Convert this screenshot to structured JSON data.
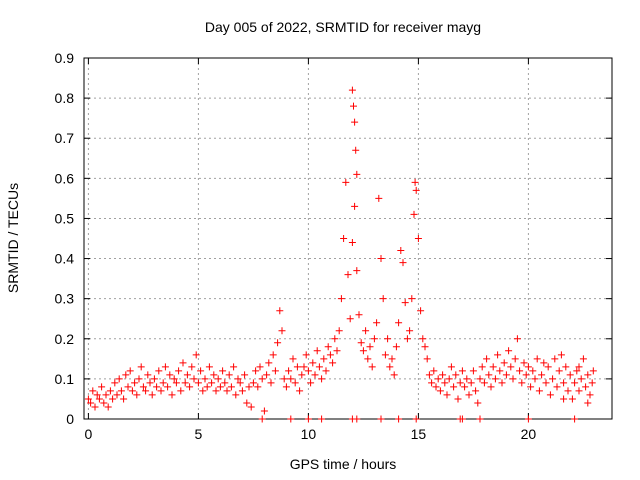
{
  "chart_data": {
    "type": "scatter",
    "title": "Day 005 of 2022, SRMTID for receiver mayg",
    "xlabel": "GPS time / hours",
    "ylabel": "SRMTID / TECUs",
    "xlim": [
      -0.2,
      23.8
    ],
    "ylim": [
      0,
      0.9
    ],
    "x_ticks": [
      0,
      5,
      10,
      15,
      20
    ],
    "y_ticks": [
      0,
      0.1,
      0.2,
      0.3,
      0.4,
      0.5,
      0.6,
      0.7,
      0.8,
      0.9
    ],
    "y_tick_labels": [
      "0",
      "0.1",
      "0.2",
      "0.3",
      "0.4",
      "0.5",
      "0.6",
      "0.7",
      "0.8",
      "0.9"
    ],
    "grid": true,
    "marker": "+",
    "color": "#ff0000",
    "series": [
      {
        "name": "SRMTID",
        "points": [
          [
            0.0,
            0.05
          ],
          [
            0.1,
            0.04
          ],
          [
            0.2,
            0.07
          ],
          [
            0.3,
            0.03
          ],
          [
            0.4,
            0.06
          ],
          [
            0.5,
            0.05
          ],
          [
            0.6,
            0.08
          ],
          [
            0.7,
            0.04
          ],
          [
            0.8,
            0.06
          ],
          [
            0.9,
            0.03
          ],
          [
            1.0,
            0.07
          ],
          [
            1.1,
            0.05
          ],
          [
            1.2,
            0.09
          ],
          [
            1.3,
            0.06
          ],
          [
            1.4,
            0.1
          ],
          [
            1.5,
            0.07
          ],
          [
            1.6,
            0.05
          ],
          [
            1.7,
            0.11
          ],
          [
            1.8,
            0.08
          ],
          [
            1.9,
            0.12
          ],
          [
            2.0,
            0.07
          ],
          [
            2.1,
            0.09
          ],
          [
            2.2,
            0.06
          ],
          [
            2.3,
            0.1
          ],
          [
            2.4,
            0.13
          ],
          [
            2.5,
            0.08
          ],
          [
            2.6,
            0.07
          ],
          [
            2.7,
            0.11
          ],
          [
            2.8,
            0.09
          ],
          [
            2.9,
            0.06
          ],
          [
            3.0,
            0.1
          ],
          [
            3.1,
            0.08
          ],
          [
            3.2,
            0.12
          ],
          [
            3.3,
            0.07
          ],
          [
            3.4,
            0.09
          ],
          [
            3.5,
            0.13
          ],
          [
            3.6,
            0.08
          ],
          [
            3.7,
            0.11
          ],
          [
            3.8,
            0.06
          ],
          [
            3.9,
            0.1
          ],
          [
            4.0,
            0.09
          ],
          [
            4.1,
            0.12
          ],
          [
            4.2,
            0.07
          ],
          [
            4.3,
            0.14
          ],
          [
            4.4,
            0.09
          ],
          [
            4.5,
            0.11
          ],
          [
            4.6,
            0.08
          ],
          [
            4.7,
            0.13
          ],
          [
            4.8,
            0.1
          ],
          [
            4.9,
            0.16
          ],
          [
            5.0,
            0.09
          ],
          [
            5.1,
            0.12
          ],
          [
            5.2,
            0.07
          ],
          [
            5.3,
            0.1
          ],
          [
            5.4,
            0.08
          ],
          [
            5.5,
            0.13
          ],
          [
            5.6,
            0.09
          ],
          [
            5.7,
            0.11
          ],
          [
            5.8,
            0.07
          ],
          [
            5.9,
            0.1
          ],
          [
            6.0,
            0.08
          ],
          [
            6.1,
            0.12
          ],
          [
            6.2,
            0.09
          ],
          [
            6.3,
            0.07
          ],
          [
            6.4,
            0.11
          ],
          [
            6.5,
            0.08
          ],
          [
            6.6,
            0.13
          ],
          [
            6.7,
            0.06
          ],
          [
            6.8,
            0.1
          ],
          [
            6.9,
            0.09
          ],
          [
            7.0,
            0.07
          ],
          [
            7.1,
            0.11
          ],
          [
            7.2,
            0.04
          ],
          [
            7.3,
            0.08
          ],
          [
            7.4,
            0.03
          ],
          [
            7.5,
            0.09
          ],
          [
            7.6,
            0.12
          ],
          [
            7.7,
            0.08
          ],
          [
            7.8,
            0.13
          ],
          [
            7.9,
            0.1
          ],
          [
            8.0,
            0.02
          ],
          [
            8.1,
            0.11
          ],
          [
            8.2,
            0.14
          ],
          [
            8.3,
            0.09
          ],
          [
            8.4,
            0.16
          ],
          [
            8.5,
            0.12
          ],
          [
            8.6,
            0.19
          ],
          [
            8.7,
            0.27
          ],
          [
            8.8,
            0.22
          ],
          [
            8.9,
            0.1
          ],
          [
            9.0,
            0.08
          ],
          [
            9.1,
            0.12
          ],
          [
            9.2,
            0.1
          ],
          [
            9.3,
            0.15
          ],
          [
            9.4,
            0.09
          ],
          [
            9.5,
            0.13
          ],
          [
            9.6,
            0.07
          ],
          [
            9.7,
            0.11
          ],
          [
            9.8,
            0.13
          ],
          [
            9.9,
            0.16
          ],
          [
            10.0,
            0.12
          ],
          [
            10.1,
            0.09
          ],
          [
            10.2,
            0.14
          ],
          [
            10.3,
            0.11
          ],
          [
            10.4,
            0.17
          ],
          [
            10.5,
            0.13
          ],
          [
            10.6,
            0.1
          ],
          [
            10.7,
            0.15
          ],
          [
            10.8,
            0.12
          ],
          [
            10.9,
            0.18
          ],
          [
            11.0,
            0.16
          ],
          [
            11.1,
            0.14
          ],
          [
            11.2,
            0.2
          ],
          [
            11.3,
            0.17
          ],
          [
            11.4,
            0.22
          ],
          [
            11.5,
            0.3
          ],
          [
            11.6,
            0.45
          ],
          [
            11.7,
            0.59
          ],
          [
            11.8,
            0.36
          ],
          [
            11.9,
            0.25
          ],
          [
            12.0,
            0.82
          ],
          [
            12.05,
            0.78
          ],
          [
            12.1,
            0.74
          ],
          [
            12.15,
            0.67
          ],
          [
            12.2,
            0.61
          ],
          [
            12.1,
            0.53
          ],
          [
            12.0,
            0.44
          ],
          [
            12.2,
            0.37
          ],
          [
            12.3,
            0.26
          ],
          [
            12.4,
            0.19
          ],
          [
            12.5,
            0.17
          ],
          [
            12.6,
            0.22
          ],
          [
            12.7,
            0.15
          ],
          [
            12.8,
            0.18
          ],
          [
            12.9,
            0.13
          ],
          [
            13.0,
            0.2
          ],
          [
            13.1,
            0.24
          ],
          [
            13.2,
            0.55
          ],
          [
            13.3,
            0.4
          ],
          [
            13.4,
            0.3
          ],
          [
            13.5,
            0.16
          ],
          [
            13.6,
            0.2
          ],
          [
            13.7,
            0.13
          ],
          [
            13.8,
            0.15
          ],
          [
            13.9,
            0.11
          ],
          [
            14.0,
            0.18
          ],
          [
            14.1,
            0.24
          ],
          [
            14.2,
            0.42
          ],
          [
            14.3,
            0.39
          ],
          [
            14.4,
            0.29
          ],
          [
            14.5,
            0.2
          ],
          [
            14.6,
            0.22
          ],
          [
            14.7,
            0.3
          ],
          [
            14.8,
            0.51
          ],
          [
            14.85,
            0.59
          ],
          [
            14.9,
            0.57
          ],
          [
            15.0,
            0.45
          ],
          [
            15.1,
            0.27
          ],
          [
            15.2,
            0.2
          ],
          [
            15.3,
            0.18
          ],
          [
            15.4,
            0.15
          ],
          [
            15.5,
            0.11
          ],
          [
            15.6,
            0.09
          ],
          [
            15.7,
            0.12
          ],
          [
            15.8,
            0.08
          ],
          [
            15.9,
            0.1
          ],
          [
            16.0,
            0.07
          ],
          [
            16.1,
            0.11
          ],
          [
            16.2,
            0.09
          ],
          [
            16.3,
            0.06
          ],
          [
            16.4,
            0.1
          ],
          [
            16.5,
            0.13
          ],
          [
            16.6,
            0.08
          ],
          [
            16.7,
            0.11
          ],
          [
            16.8,
            0.05
          ],
          [
            16.9,
            0.09
          ],
          [
            17.0,
            0.12
          ],
          [
            17.1,
            0.08
          ],
          [
            17.2,
            0.1
          ],
          [
            17.3,
            0.06
          ],
          [
            17.4,
            0.09
          ],
          [
            17.5,
            0.12
          ],
          [
            17.6,
            0.07
          ],
          [
            17.7,
            0.04
          ],
          [
            17.8,
            0.1
          ],
          [
            17.9,
            0.13
          ],
          [
            18.0,
            0.09
          ],
          [
            18.1,
            0.15
          ],
          [
            18.2,
            0.11
          ],
          [
            18.3,
            0.08
          ],
          [
            18.4,
            0.13
          ],
          [
            18.5,
            0.1
          ],
          [
            18.6,
            0.16
          ],
          [
            18.7,
            0.12
          ],
          [
            18.8,
            0.09
          ],
          [
            18.9,
            0.14
          ],
          [
            19.0,
            0.11
          ],
          [
            19.1,
            0.17
          ],
          [
            19.2,
            0.13
          ],
          [
            19.3,
            0.1
          ],
          [
            19.4,
            0.15
          ],
          [
            19.5,
            0.2
          ],
          [
            19.6,
            0.12
          ],
          [
            19.7,
            0.09
          ],
          [
            19.8,
            0.14
          ],
          [
            19.9,
            0.11
          ],
          [
            20.0,
            0.13
          ],
          [
            20.1,
            0.08
          ],
          [
            20.2,
            0.12
          ],
          [
            20.3,
            0.1
          ],
          [
            20.4,
            0.15
          ],
          [
            20.5,
            0.07
          ],
          [
            20.6,
            0.11
          ],
          [
            20.7,
            0.14
          ],
          [
            20.8,
            0.09
          ],
          [
            20.9,
            0.13
          ],
          [
            21.0,
            0.06
          ],
          [
            21.1,
            0.1
          ],
          [
            21.2,
            0.15
          ],
          [
            21.3,
            0.08
          ],
          [
            21.4,
            0.12
          ],
          [
            21.5,
            0.16
          ],
          [
            21.6,
            0.09
          ],
          [
            21.7,
            0.13
          ],
          [
            21.8,
            0.07
          ],
          [
            21.9,
            0.11
          ],
          [
            22.0,
            0.05
          ],
          [
            22.1,
            0.09
          ],
          [
            22.2,
            0.12
          ],
          [
            22.3,
            0.07
          ],
          [
            22.4,
            0.1
          ],
          [
            22.5,
            0.15
          ],
          [
            22.6,
            0.08
          ],
          [
            22.7,
            0.11
          ],
          [
            22.8,
            0.06
          ],
          [
            22.9,
            0.09
          ],
          [
            22.95,
            0.12
          ],
          [
            22.7,
            0.04
          ],
          [
            22.3,
            0.13
          ],
          [
            21.6,
            0.05
          ],
          [
            7.9,
            0.0
          ],
          [
            9.2,
            0.0
          ],
          [
            10.0,
            0.0
          ],
          [
            10.6,
            0.0
          ],
          [
            12.0,
            0.0
          ],
          [
            12.2,
            0.0
          ],
          [
            13.3,
            0.0
          ],
          [
            14.1,
            0.0
          ],
          [
            14.9,
            0.0
          ],
          [
            16.9,
            0.0
          ],
          [
            17.0,
            0.0
          ],
          [
            17.8,
            0.0
          ],
          [
            20.0,
            0.0
          ],
          [
            22.1,
            0.0
          ]
        ]
      }
    ]
  }
}
